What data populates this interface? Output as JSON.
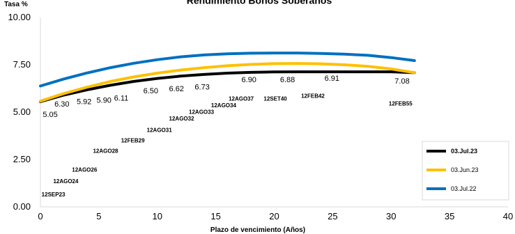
{
  "chart_data": {
    "type": "line",
    "title": "Rendimiento Bonos Soberanos",
    "xlabel": "Plazo de vencimiento (Años)",
    "ylabel": "Tasa %",
    "xlim": [
      0,
      40
    ],
    "ylim": [
      0,
      10
    ],
    "x_ticks": [
      "0",
      "5",
      "10",
      "15",
      "20",
      "25",
      "30",
      "35",
      "40"
    ],
    "y_ticks": [
      "0.00",
      "2.50",
      "5.00",
      "7.50",
      "10.00"
    ],
    "grid": false,
    "legend_position": "bottom-right",
    "series": [
      {
        "name": "03.Jul.23",
        "color": "#000000",
        "x": [
          0,
          2,
          4,
          6,
          8,
          10,
          12,
          14,
          16,
          18,
          20,
          22,
          24,
          26,
          28,
          30,
          32
        ],
        "y": [
          5.55,
          5.9,
          6.18,
          6.42,
          6.62,
          6.78,
          6.9,
          6.99,
          7.06,
          7.1,
          7.12,
          7.13,
          7.13,
          7.13,
          7.13,
          7.13,
          7.08
        ]
      },
      {
        "name": "03.Jun.23",
        "color": "#FFC000",
        "x": [
          0,
          2,
          4,
          6,
          8,
          10,
          12,
          14,
          16,
          18,
          20,
          22,
          24,
          26,
          28,
          30,
          32
        ],
        "y": [
          5.58,
          5.98,
          6.32,
          6.62,
          6.86,
          7.06,
          7.22,
          7.35,
          7.45,
          7.52,
          7.56,
          7.57,
          7.55,
          7.5,
          7.42,
          7.28,
          7.08
        ]
      },
      {
        "name": "03.Jul.22",
        "color": "#0070C0",
        "x": [
          0,
          2,
          4,
          6,
          8,
          10,
          12,
          14,
          16,
          18,
          20,
          22,
          24,
          26,
          28,
          30,
          32
        ],
        "y": [
          6.38,
          6.75,
          7.07,
          7.35,
          7.58,
          7.77,
          7.92,
          8.02,
          8.08,
          8.11,
          8.12,
          8.12,
          8.1,
          8.06,
          8.0,
          7.88,
          7.72
        ]
      }
    ],
    "value_labels": [
      {
        "text": "5.05",
        "x": 0.2,
        "y": 4.75
      },
      {
        "text": "6.30",
        "x": 1.2,
        "y": 5.3
      },
      {
        "text": "5.92",
        "x": 3.1,
        "y": 5.42
      },
      {
        "text": "5.90",
        "x": 4.8,
        "y": 5.5
      },
      {
        "text": "6.11",
        "x": 6.3,
        "y": 5.6
      },
      {
        "text": "6.50",
        "x": 8.8,
        "y": 6.0
      },
      {
        "text": "6.62",
        "x": 11.0,
        "y": 6.1
      },
      {
        "text": "6.73",
        "x": 13.2,
        "y": 6.2
      },
      {
        "text": "6.90",
        "x": 17.2,
        "y": 6.58
      },
      {
        "text": "6.88",
        "x": 20.5,
        "y": 6.58
      },
      {
        "text": "6.91",
        "x": 24.3,
        "y": 6.65
      },
      {
        "text": "7.08",
        "x": 30.3,
        "y": 6.5
      }
    ],
    "bond_labels": [
      {
        "text": "12SEP23",
        "x": 0.1,
        "y": 0.55
      },
      {
        "text": "12AGO24",
        "x": 1.1,
        "y": 1.25
      },
      {
        "text": "12AGO26",
        "x": 2.7,
        "y": 1.85
      },
      {
        "text": "12AGO28",
        "x": 4.5,
        "y": 2.85
      },
      {
        "text": "12FEB29",
        "x": 6.9,
        "y": 3.4
      },
      {
        "text": "12AGO31",
        "x": 9.1,
        "y": 3.95
      },
      {
        "text": "12AGO32",
        "x": 11.0,
        "y": 4.55
      },
      {
        "text": "12AGO33",
        "x": 12.7,
        "y": 4.9
      },
      {
        "text": "12AGO34",
        "x": 14.6,
        "y": 5.25
      },
      {
        "text": "12AGO37",
        "x": 16.1,
        "y": 5.6
      },
      {
        "text": "12SET40",
        "x": 19.1,
        "y": 5.6
      },
      {
        "text": "12FEB42",
        "x": 22.3,
        "y": 5.75
      },
      {
        "text": "12FEB55",
        "x": 29.8,
        "y": 5.35
      }
    ]
  }
}
